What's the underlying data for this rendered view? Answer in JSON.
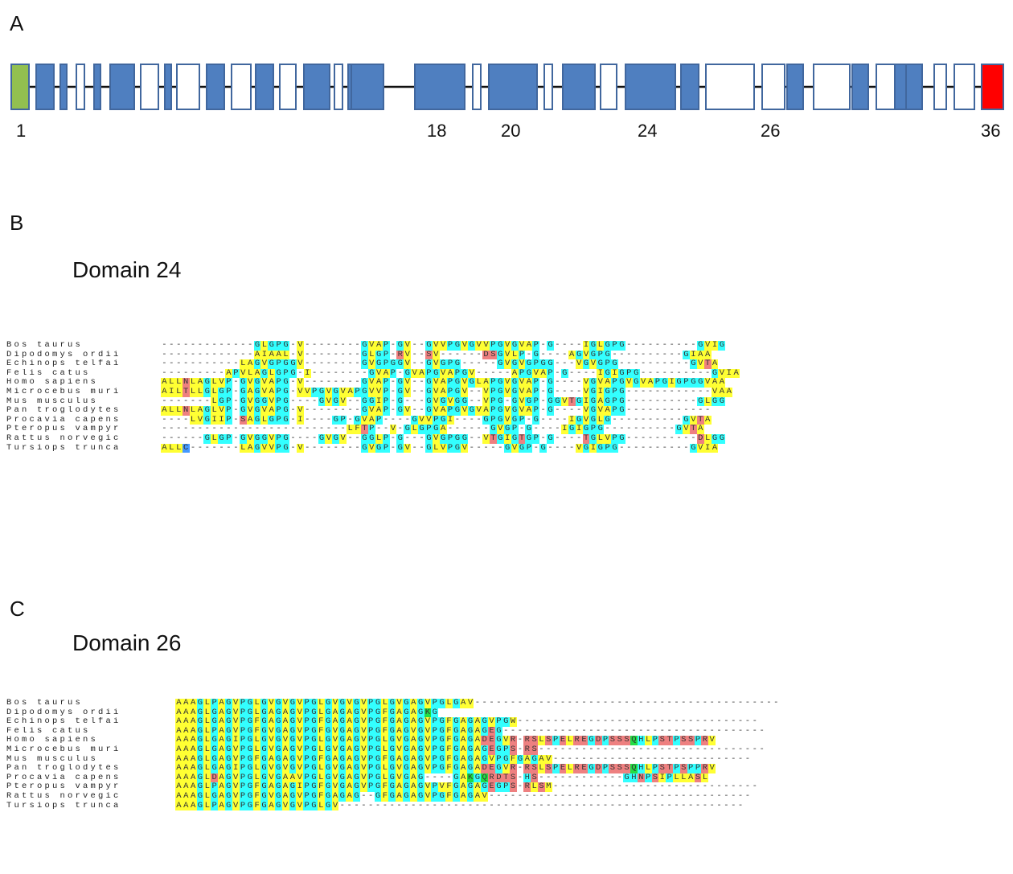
{
  "panels": {
    "a": "A",
    "b": "B",
    "c": "C"
  },
  "gene": {
    "exon_labels": [
      "1",
      "18",
      "20",
      "24",
      "26",
      "36"
    ],
    "exons": [
      {
        "n": 1,
        "fill": "#92c050"
      },
      {
        "n": 2,
        "fill": "#4f7fc0"
      },
      {
        "n": 3,
        "fill": "#4f7fc0"
      },
      {
        "n": 4,
        "fill": "#ffffff"
      },
      {
        "n": 5,
        "fill": "#4f7fc0"
      },
      {
        "n": 6,
        "fill": "#4f7fc0"
      },
      {
        "n": 7,
        "fill": "#ffffff"
      },
      {
        "n": 8,
        "fill": "#4f7fc0"
      },
      {
        "n": 9,
        "fill": "#ffffff"
      },
      {
        "n": 10,
        "fill": "#4f7fc0"
      },
      {
        "n": 11,
        "fill": "#ffffff"
      },
      {
        "n": 12,
        "fill": "#4f7fc0"
      },
      {
        "n": 13,
        "fill": "#ffffff"
      },
      {
        "n": 14,
        "fill": "#4f7fc0"
      },
      {
        "n": 15,
        "fill": "#ffffff"
      },
      {
        "n": 16,
        "fill": "#4f7fc0"
      },
      {
        "n": 17,
        "fill": "#4f7fc0"
      },
      {
        "n": 18,
        "fill": "#4f7fc0"
      },
      {
        "n": 19,
        "fill": "#ffffff"
      },
      {
        "n": 20,
        "fill": "#4f7fc0"
      },
      {
        "n": 21,
        "fill": "#ffffff"
      },
      {
        "n": 22,
        "fill": "#4f7fc0"
      },
      {
        "n": 23,
        "fill": "#ffffff"
      },
      {
        "n": 24,
        "fill": "#4f7fc0"
      },
      {
        "n": 25,
        "fill": "#4f7fc0"
      },
      {
        "n": 26,
        "fill": "#ffffff"
      },
      {
        "n": 27,
        "fill": "#ffffff"
      },
      {
        "n": 28,
        "fill": "#4f7fc0"
      },
      {
        "n": 29,
        "fill": "#ffffff"
      },
      {
        "n": 30,
        "fill": "#4f7fc0"
      },
      {
        "n": 31,
        "fill": "#ffffff"
      },
      {
        "n": 32,
        "fill": "#4f7fc0"
      },
      {
        "n": 33,
        "fill": "#4f7fc0"
      },
      {
        "n": 34,
        "fill": "#ffffff"
      },
      {
        "n": 35,
        "fill": "#ffffff"
      },
      {
        "n": 36,
        "fill": "#ff0000"
      }
    ]
  },
  "domain_b": {
    "title": "Domain 24",
    "rows": [
      {
        "name": "Bos taurus",
        "seq": "-------------GLGPG-V--------GVAP-GV--GVVPGVGVVPGVGVAP-G----IGLGPG----------GVIG"
      },
      {
        "name": "Dipodomys ordii",
        "seq": "-------------AIAAL-V--------GLGP-RV--SV------DSGVLP-G----AGVGPG----------GIAA"
      },
      {
        "name": "Echinops telfai",
        "seq": "-----------LAGVGPGGV--------GVGPGGV--GVGPG-----GVGVGPGG---VGVGPG----------GVTA"
      },
      {
        "name": "Felis catus",
        "seq": "---------APVLAGLGPG-I--------GVAP-GVAPGVAPGV-----APGVAP-G----IGIGPG----------GVIA"
      },
      {
        "name": "Homo sapiens",
        "seq": "ALLNLAGLVP-GVGVAPG-V--------GVAP-GV--GVAPGVGLAPGVGVAP-G----VGVAPGVGVAPGIGPGGVAA"
      },
      {
        "name": "Microcebus muri",
        "seq": "AILTLLGLGP-GAGVAPG-VVPGVGVAPGVVP-GV--GVAPGV--VPGVGVAP-G----VGIGPG------------VAA"
      },
      {
        "name": "Mus musculus",
        "seq": "-------LGP-GVGGVPG----GVGV--GGIP-G---GVGVGG--VPG-GVGP-GGVTGIGAGPG----------GLGG"
      },
      {
        "name": "Pan troglodytes",
        "seq": "ALLNLAGLVP-GVGVAPG-V--------GVAP-GV--GVAPGVGVAPGVGVAP-G----VGVAPG------------"
      },
      {
        "name": "Procavia capens",
        "seq": "----LVGIIP-SAGLGPG-I----GP-GVAP----GVVPGI----GPGVGP-G----IGVGLG----------GVTA"
      },
      {
        "name": "Pteropus vampyr",
        "seq": "--------------------------LFTP--V-GLGPGA------GVGP-G----IGIGPG----------GVTA"
      },
      {
        "name": "Rattus norvegic",
        "seq": "------GLGP-GVGGVPG----GVGV--GGLP-G---GVGPGG--VTGIGTGP-G----TGLVPG----------DLGG"
      },
      {
        "name": "Tursiops trunca",
        "seq": "ALLC-------LAGVVPG-V--------GVGP-GV--GLVPGV-----GVGP-G----VGIGPG----------GVIA"
      }
    ]
  },
  "domain_c": {
    "title": "Domain 26",
    "rows": [
      {
        "name": "Bos taurus",
        "seq": "AAAGLPAGVPGLGVGVGVPGLGVGVGVPGLGVGAGVPGLGAV-------------------------------------------"
      },
      {
        "name": "Dipodomys ordii",
        "seq": "AAAGLGAGVPGLGAGAGVPGLGAGAGVPGFGAGAGKG"
      },
      {
        "name": "Echinops telfai",
        "seq": "AAAGLGAGVPGFGAGAGVPGFGAGAGVPGFGAGAGVPGFGAGAGVPGW----------------------------------"
      },
      {
        "name": "Felis catus",
        "seq": "AAAGLPAGVPGFGVGAGVPGFGVGAGVPGFGAGVGVPGFGAGAGEG-------------------------------------"
      },
      {
        "name": "Homo sapiens",
        "seq": "AAAGLGAGIPGLGVGVGVPGLGVGAGVPGLGVGAGVPGFGAGADEGVR-RSLSPELREGDPSSSQHLPSTPSSPRV"
      },
      {
        "name": "Microcebus muri",
        "seq": "AAAGLGAGVPGLGVGAGVPGLGVGAGVPGLGVGAGVPGFGAGAGEGPS-RS--------------------------------"
      },
      {
        "name": "Mus musculus",
        "seq": "AAAGLGAGVPGFGAGAGVPGFGAGAGVPGFGAGAGVPGFGAGAGVPGFGAGAV----------------------------"
      },
      {
        "name": "Pan troglodytes",
        "seq": "AAAGLGAGIPGLGVGVGVPGLGVGAGVPGLGVGAGVPGFGAGADEGVR-RSLSPELREGDPSSSQHLPSTPSPPRV"
      },
      {
        "name": "Procavia capens",
        "seq": "AAAGLDAGVPGLGVGAAVPGLGVGAGVPGLGVGAG----GAKGQRDTS-HS------------GHNPSIPLLASL"
      },
      {
        "name": "Pteropus vampyr",
        "seq": "AAAGLPAGVPGFGAGAGIPGFGVGAGVPGFGAGAGVPVFGAGAGEGPS-RLSM-----------------------------"
      },
      {
        "name": "Rattus norvegic",
        "seq": "AAAGLGAGVPGFGVGAGVPGFGAGAG--GFGAGAGVPGFGAGAV-------------------------------------"
      },
      {
        "name": "Tursiops trunca",
        "seq": "AAAGLPAGVPGFGAGVGVPGLGV---------------------------------------------------------"
      }
    ]
  },
  "colors": {
    "A": "y",
    "L": "y",
    "I": "y",
    "V": "y",
    "M": "y",
    "G": "c",
    "P": "c",
    "T": "r",
    "S": "r",
    "D": "r",
    "E": "r",
    "R": "r",
    "N": "r",
    "Q": "g",
    "H": "c",
    "K": "g",
    "F": "y",
    "W": "y",
    "C": "b",
    "Y": "y"
  }
}
